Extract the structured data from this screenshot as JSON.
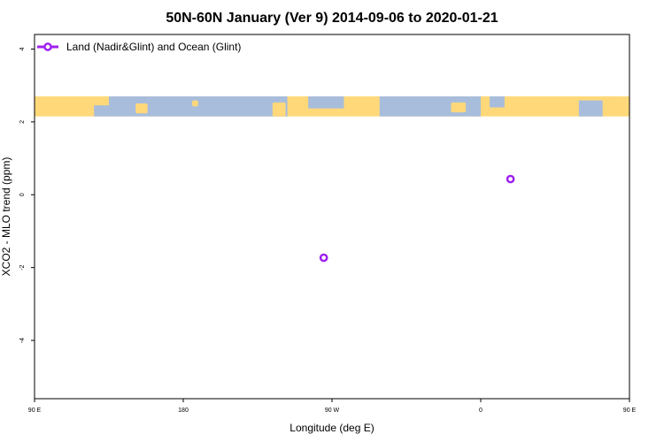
{
  "chart_data": {
    "type": "scatter",
    "title": "50N-60N January (Ver 9)   2014-09-06 to 2020-01-21",
    "xlabel": "Longitude (deg E)",
    "ylabel": "XCO2 - MLO trend (ppm)",
    "xlim": [
      90,
      450
    ],
    "ylim": [
      -5.6,
      4.4
    ],
    "x_ticks": [
      90,
      180,
      270,
      360,
      450
    ],
    "x_tick_labels": [
      "90 E",
      "180",
      "90 W",
      "0",
      "90 E"
    ],
    "y_ticks": [
      -4,
      -2,
      0,
      2,
      4
    ],
    "y_tick_labels": [
      "-4",
      "-2",
      "0",
      "2",
      "4"
    ],
    "grid": false,
    "legend_position": "top-left",
    "series": [
      {
        "name": "Land (Nadir&Glint) and Ocean (Glint)",
        "color": "#a020f0",
        "marker": "open-circle",
        "points": [
          {
            "x": 265,
            "y": -1.73
          },
          {
            "x": 378,
            "y": 0.43
          }
        ]
      }
    ],
    "map_strip": {
      "y_range": [
        2.15,
        2.7
      ],
      "ocean_color": "#a8bddc",
      "land_color": "#ffd87a"
    }
  }
}
